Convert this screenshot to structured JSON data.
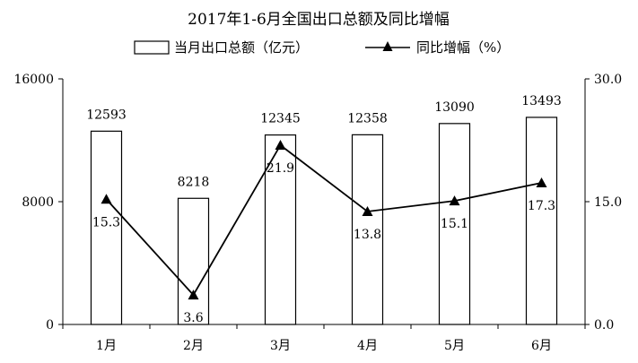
{
  "chart_data": {
    "type": "bar",
    "title": "2017年1-6月全国出口总额及同比增幅",
    "categories": [
      "1月",
      "2月",
      "3月",
      "4月",
      "5月",
      "6月"
    ],
    "series": [
      {
        "name": "当月出口总额（亿元）",
        "type": "bar",
        "axis": "left",
        "values": [
          12593,
          8218,
          12345,
          12358,
          13090,
          13493
        ],
        "labels": [
          "12593",
          "8218",
          "12345",
          "12358",
          "13090",
          "13493"
        ]
      },
      {
        "name": "同比增幅（%）",
        "type": "line",
        "axis": "right",
        "marker": "triangle",
        "values": [
          15.3,
          3.6,
          21.9,
          13.8,
          15.1,
          17.3
        ],
        "labels": [
          "15.3",
          "3.6",
          "21.9",
          "13.8",
          "15.1",
          "17.3"
        ]
      }
    ],
    "y_left": {
      "min": 0,
      "max": 16000,
      "ticks": [
        "0",
        "8000",
        "16000"
      ]
    },
    "y_right": {
      "min": 0,
      "max": 30,
      "ticks": [
        "0.0",
        "15.0",
        "30.0"
      ]
    },
    "grid": false,
    "legend_position": "top",
    "colors": {
      "bar_fill": "#ffffff",
      "bar_stroke": "#000000",
      "line": "#000000"
    }
  }
}
